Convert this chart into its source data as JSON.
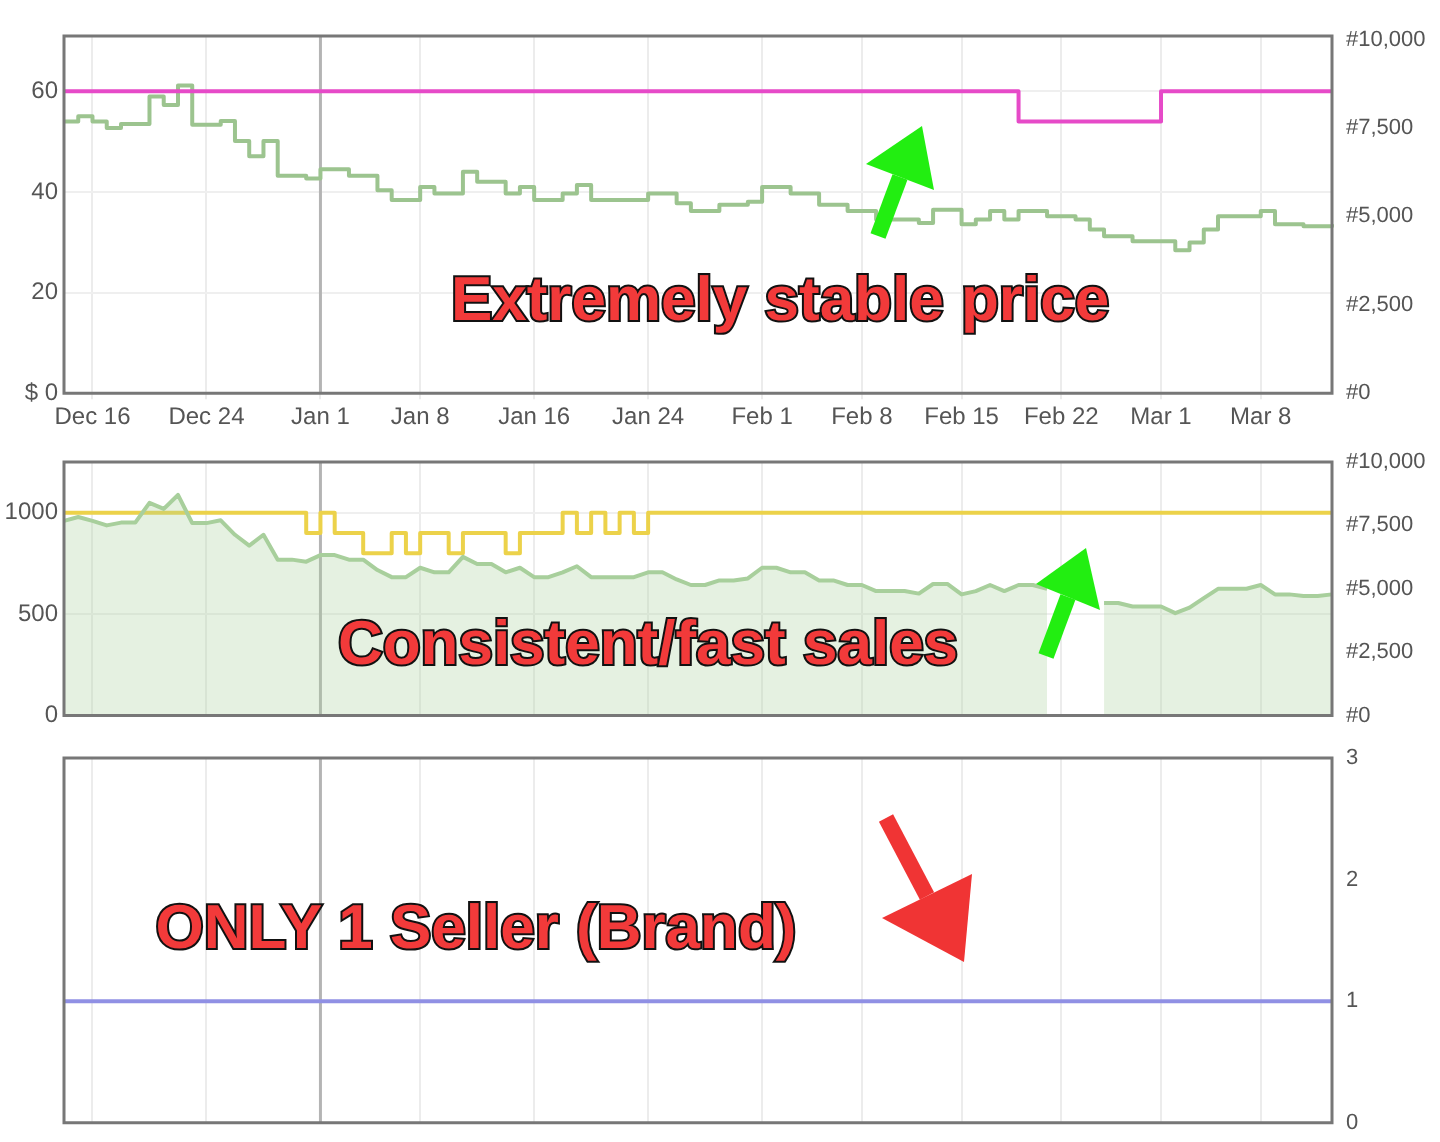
{
  "chart_data": [
    {
      "type": "step",
      "categories": [
        null,
        null,
        "Dec 16",
        null,
        null,
        null,
        null,
        null,
        null,
        null,
        "Dec 24",
        null,
        null,
        null,
        null,
        null,
        null,
        null,
        "Jan 1",
        null,
        null,
        null,
        null,
        null,
        null,
        "Jan 8",
        null,
        null,
        null,
        null,
        null,
        null,
        null,
        "Jan 16",
        null,
        null,
        null,
        null,
        null,
        null,
        null,
        "Jan 24",
        null,
        null,
        null,
        null,
        null,
        null,
        null,
        "Feb 1",
        null,
        null,
        null,
        null,
        null,
        null,
        "Feb 8",
        null,
        null,
        null,
        null,
        null,
        null,
        "Feb 15",
        null,
        null,
        null,
        null,
        null,
        null,
        "Feb 22",
        null,
        null,
        null,
        null,
        null,
        null,
        "Mar 1",
        null,
        null,
        null,
        null,
        null,
        null,
        "Mar 8",
        null,
        null,
        null,
        null,
        null
      ],
      "ylim": [
        0,
        71
      ],
      "yticks": [
        {
          "value": 0,
          "label": "$ 0"
        },
        20,
        40,
        60
      ],
      "y2lim": [
        0,
        10100
      ],
      "y2ticks": [
        {
          "value": 0,
          "label": "#0"
        },
        {
          "value": 2500,
          "label": "#2,500"
        },
        {
          "value": 5000,
          "label": "#5,000"
        },
        {
          "value": 7500,
          "label": "#7,500"
        },
        {
          "value": 10000,
          "label": "#10,000"
        }
      ],
      "grid": true,
      "ref_lines": [
        {
          "axis": "x",
          "value": "Jan 1",
          "color": "#b4b4b4"
        }
      ],
      "annotations": [
        "Extremely stable price"
      ],
      "series": [
        {
          "color": "#e64ac8",
          "values": [
            60,
            60,
            60,
            60,
            60,
            60,
            60,
            60,
            60,
            60,
            60,
            60,
            60,
            60,
            60,
            60,
            60,
            60,
            60,
            60,
            60,
            60,
            60,
            60,
            60,
            60,
            60,
            60,
            60,
            60,
            60,
            60,
            60,
            60,
            60,
            60,
            60,
            60,
            60,
            60,
            60,
            60,
            60,
            60,
            60,
            60,
            60,
            60,
            60,
            60,
            60,
            60,
            60,
            60,
            60,
            60,
            60,
            60,
            60,
            60,
            60,
            60,
            60,
            60,
            60,
            60,
            60,
            54,
            54,
            54,
            54,
            54,
            54,
            54,
            54,
            54,
            54,
            60,
            60,
            60,
            60,
            60,
            60,
            60,
            60,
            60,
            60,
            60,
            60,
            60
          ]
        },
        {
          "color": "#9cc48f",
          "axis": "y2",
          "values": [
            7680,
            7830,
            7680,
            7500,
            7610,
            7610,
            8390,
            8150,
            8700,
            7590,
            7590,
            7700,
            7130,
            6700,
            7130,
            6150,
            6150,
            6070,
            6330,
            6330,
            6150,
            6150,
            5740,
            5460,
            5460,
            5830,
            5650,
            5650,
            6260,
            5980,
            5980,
            5650,
            5830,
            5460,
            5460,
            5650,
            5890,
            5460,
            5460,
            5460,
            5460,
            5650,
            5650,
            5370,
            5150,
            5150,
            5330,
            5330,
            5410,
            5830,
            5830,
            5650,
            5650,
            5330,
            5330,
            5150,
            5150,
            4910,
            4910,
            4910,
            4810,
            5190,
            5190,
            4780,
            4910,
            5150,
            4910,
            5150,
            5150,
            5000,
            5000,
            4910,
            4630,
            4440,
            4440,
            4300,
            4300,
            4300,
            4040,
            4260,
            4630,
            5000,
            5000,
            5000,
            5150,
            4780,
            4780,
            4720,
            4720,
            4780
          ]
        }
      ]
    },
    {
      "type": "step",
      "tick_labels": "y",
      "categories": [
        null,
        null,
        "Dec 16",
        null,
        null,
        null,
        null,
        null,
        null,
        null,
        "Dec 24",
        null,
        null,
        null,
        null,
        null,
        null,
        null,
        "Jan 1",
        null,
        null,
        null,
        null,
        null,
        null,
        "Jan 8",
        null,
        null,
        null,
        null,
        null,
        null,
        null,
        "Jan 16",
        null,
        null,
        null,
        null,
        null,
        null,
        null,
        "Jan 24",
        null,
        null,
        null,
        null,
        null,
        null,
        null,
        "Feb 1",
        null,
        null,
        null,
        null,
        null,
        null,
        "Feb 8",
        null,
        null,
        null,
        null,
        null,
        null,
        "Feb 15",
        null,
        null,
        null,
        null,
        null,
        null,
        "Feb 22",
        null,
        null,
        null,
        null,
        null,
        null,
        "Mar 1",
        null,
        null,
        null,
        null,
        null,
        null,
        "Mar 8",
        null,
        null,
        null,
        null,
        null
      ],
      "ylim": [
        0,
        1250
      ],
      "yticks": [
        0,
        500,
        1000
      ],
      "y2lim": [
        0,
        10000
      ],
      "y2ticks": [
        {
          "value": 0,
          "label": "#0"
        },
        {
          "value": 2500,
          "label": "#2,500"
        },
        {
          "value": 5000,
          "label": "#5,000"
        },
        {
          "value": 7500,
          "label": "#7,500"
        },
        {
          "value": 10000,
          "label": "#10,000"
        }
      ],
      "grid": true,
      "ref_lines": [
        {
          "axis": "x",
          "value": "Jan 1",
          "color": "#b4b4b4"
        }
      ],
      "annotations": [
        "Consistent/fast sales"
      ],
      "series": [
        {
          "type": "area",
          "color": "#a8cf9c",
          "axis": "y2",
          "values": [
            7680,
            7830,
            7680,
            7500,
            7610,
            7610,
            8390,
            8150,
            8700,
            7590,
            7590,
            7700,
            7130,
            6700,
            7130,
            6150,
            6150,
            6070,
            6330,
            6330,
            6150,
            6150,
            5740,
            5460,
            5460,
            5830,
            5650,
            5650,
            6260,
            5980,
            5980,
            5650,
            5830,
            5460,
            5460,
            5650,
            5890,
            5460,
            5460,
            5460,
            5460,
            5650,
            5650,
            5370,
            5150,
            5150,
            5330,
            5330,
            5410,
            5830,
            5830,
            5650,
            5650,
            5330,
            5330,
            5150,
            5150,
            4910,
            4910,
            4910,
            4810,
            5190,
            5190,
            4780,
            4910,
            5150,
            4910,
            5150,
            5150,
            5000,
            null,
            null,
            null,
            4440,
            4440,
            4300,
            4300,
            4300,
            4040,
            4260,
            4630,
            5000,
            5000,
            5000,
            5150,
            4780,
            4780,
            4720,
            4720,
            4780
          ]
        },
        {
          "color": "#ecd24a",
          "values": [
            1000,
            1000,
            1000,
            1000,
            1000,
            1000,
            1000,
            1000,
            1000,
            1000,
            1000,
            1000,
            1000,
            1000,
            1000,
            1000,
            1000,
            900,
            1000,
            900,
            900,
            800,
            800,
            900,
            800,
            900,
            900,
            800,
            900,
            900,
            900,
            800,
            900,
            900,
            900,
            1000,
            900,
            1000,
            900,
            1000,
            900,
            1000,
            1000,
            1000,
            1000,
            1000,
            1000,
            1000,
            1000,
            1000,
            1000,
            1000,
            1000,
            1000,
            1000,
            1000,
            1000,
            1000,
            1000,
            1000,
            1000,
            1000,
            1000,
            1000,
            1000,
            1000,
            1000,
            1000,
            1000,
            1000,
            1000,
            1000,
            1000,
            1000,
            1000,
            1000,
            1000,
            1000,
            1000,
            1000,
            1000,
            1000,
            1000,
            1000,
            1000,
            1000,
            1000,
            1000,
            1000,
            1000
          ]
        }
      ]
    },
    {
      "type": "line",
      "tick_labels": "y",
      "categories": [
        null,
        null,
        "Dec 16",
        null,
        null,
        null,
        null,
        null,
        null,
        null,
        "Dec 24",
        null,
        null,
        null,
        null,
        null,
        null,
        null,
        "Jan 1",
        null,
        null,
        null,
        null,
        null,
        null,
        "Jan 8",
        null,
        null,
        null,
        null,
        null,
        null,
        null,
        "Jan 16",
        null,
        null,
        null,
        null,
        null,
        null,
        null,
        "Jan 24",
        null,
        null,
        null,
        null,
        null,
        null,
        null,
        "Feb 1",
        null,
        null,
        null,
        null,
        null,
        null,
        "Feb 8",
        null,
        null,
        null,
        null,
        null,
        null,
        "Feb 15",
        null,
        null,
        null,
        null,
        null,
        null,
        "Feb 22",
        null,
        null,
        null,
        null,
        null,
        null,
        "Mar 1",
        null,
        null,
        null,
        null,
        null,
        null,
        "Mar 8",
        null,
        null,
        null,
        null,
        null
      ],
      "y2lim": [
        0,
        3
      ],
      "y2ticks": [
        0,
        1,
        2,
        3
      ],
      "grid": "x",
      "ref_lines": [
        {
          "axis": "x",
          "value": "Jan 1",
          "color": "#b4b4b4"
        }
      ],
      "annotations": [
        "ONLY 1 Seller (Brand)"
      ],
      "series": [
        {
          "color": "#9090e4",
          "axis": "y2",
          "values": [
            1,
            1,
            1,
            1,
            1,
            1,
            1,
            1,
            1,
            1,
            1,
            1,
            1,
            1,
            1,
            1,
            1,
            1,
            1,
            1,
            1,
            1,
            1,
            1,
            1,
            1,
            1,
            1,
            1,
            1,
            1,
            1,
            1,
            1,
            1,
            1,
            1,
            1,
            1,
            1,
            1,
            1,
            1,
            1,
            1,
            1,
            1,
            1,
            1,
            1,
            1,
            1,
            1,
            1,
            1,
            1,
            1,
            1,
            1,
            1,
            1,
            1,
            1,
            1,
            1,
            1,
            1,
            1,
            1,
            1,
            1,
            1,
            1,
            1,
            1,
            1,
            1,
            1,
            1,
            1,
            1,
            1,
            1,
            1,
            1,
            1,
            1,
            1,
            1,
            1
          ]
        }
      ]
    }
  ]
}
